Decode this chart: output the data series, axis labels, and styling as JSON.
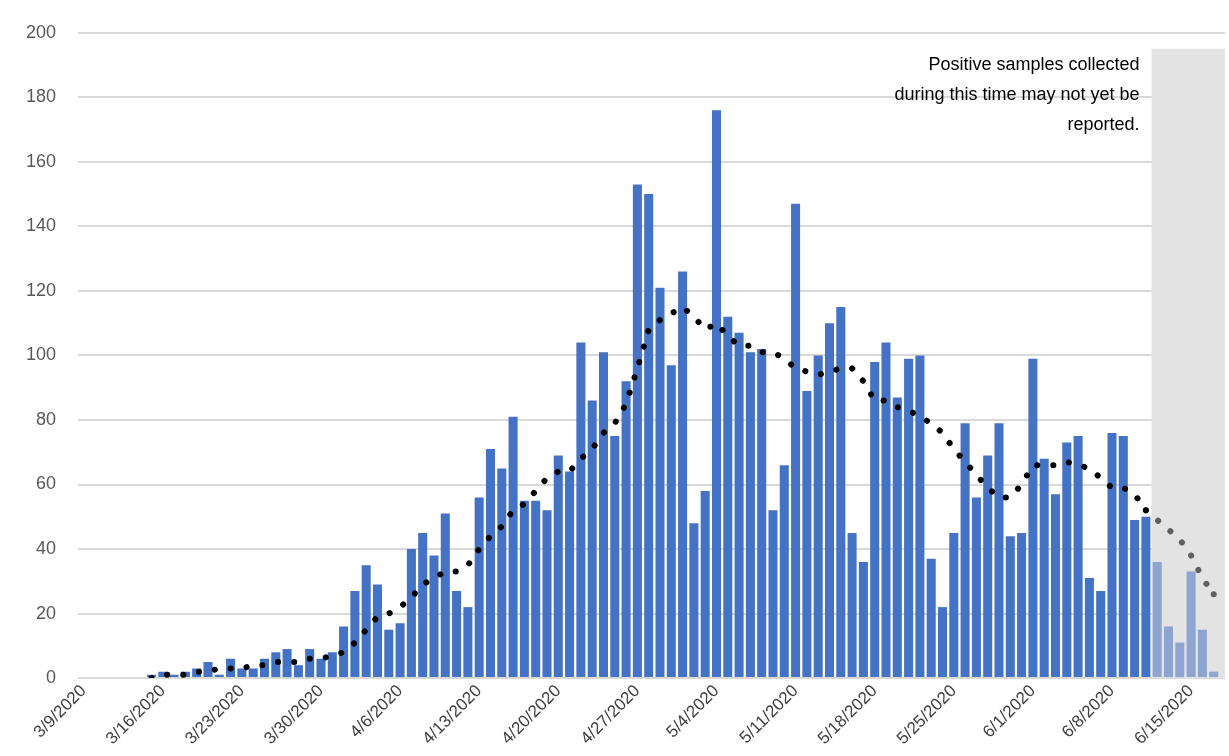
{
  "chart_data": {
    "type": "bar",
    "x": [
      "2020-03-15",
      "2020-03-16",
      "2020-03-17",
      "2020-03-18",
      "2020-03-19",
      "2020-03-20",
      "2020-03-21",
      "2020-03-22",
      "2020-03-23",
      "2020-03-24",
      "2020-03-25",
      "2020-03-26",
      "2020-03-27",
      "2020-03-28",
      "2020-03-29",
      "2020-03-30",
      "2020-03-31",
      "2020-04-01",
      "2020-04-02",
      "2020-04-03",
      "2020-04-04",
      "2020-04-05",
      "2020-04-06",
      "2020-04-07",
      "2020-04-08",
      "2020-04-09",
      "2020-04-10",
      "2020-04-11",
      "2020-04-12",
      "2020-04-13",
      "2020-04-14",
      "2020-04-15",
      "2020-04-16",
      "2020-04-17",
      "2020-04-18",
      "2020-04-19",
      "2020-04-20",
      "2020-04-21",
      "2020-04-22",
      "2020-04-23",
      "2020-04-24",
      "2020-04-25",
      "2020-04-26",
      "2020-04-27",
      "2020-04-28",
      "2020-04-29",
      "2020-04-30",
      "2020-05-01",
      "2020-05-02",
      "2020-05-03",
      "2020-05-04",
      "2020-05-05",
      "2020-05-06",
      "2020-05-07",
      "2020-05-08",
      "2020-05-09",
      "2020-05-10",
      "2020-05-11",
      "2020-05-12",
      "2020-05-13",
      "2020-05-14",
      "2020-05-15",
      "2020-05-16",
      "2020-05-17",
      "2020-05-18",
      "2020-05-19",
      "2020-05-20",
      "2020-05-21",
      "2020-05-22",
      "2020-05-23",
      "2020-05-24",
      "2020-05-25",
      "2020-05-26",
      "2020-05-27",
      "2020-05-28",
      "2020-05-29",
      "2020-05-30",
      "2020-05-31",
      "2020-06-01",
      "2020-06-02",
      "2020-06-03",
      "2020-06-04",
      "2020-06-05",
      "2020-06-06",
      "2020-06-07",
      "2020-06-08",
      "2020-06-09",
      "2020-06-10",
      "2020-06-11",
      "2020-06-12",
      "2020-06-13",
      "2020-06-14",
      "2020-06-15",
      "2020-06-16",
      "2020-06-17"
    ],
    "xlim": [
      "2020-03-08T12:00",
      "2020-06-18"
    ],
    "xticks": [
      {
        "value": "2020-03-09",
        "label": "3/9/2020"
      },
      {
        "value": "2020-03-16",
        "label": "3/16/2020"
      },
      {
        "value": "2020-03-23",
        "label": "3/23/2020"
      },
      {
        "value": "2020-03-30",
        "label": "3/30/2020"
      },
      {
        "value": "2020-04-06",
        "label": "4/6/2020"
      },
      {
        "value": "2020-04-13",
        "label": "4/13/2020"
      },
      {
        "value": "2020-04-20",
        "label": "4/20/2020"
      },
      {
        "value": "2020-04-27",
        "label": "4/27/2020"
      },
      {
        "value": "2020-05-04",
        "label": "5/4/2020"
      },
      {
        "value": "2020-05-11",
        "label": "5/11/2020"
      },
      {
        "value": "2020-05-18",
        "label": "5/18/2020"
      },
      {
        "value": "2020-05-25",
        "label": "5/25/2020"
      },
      {
        "value": "2020-06-01",
        "label": "6/1/2020"
      },
      {
        "value": "2020-06-08",
        "label": "6/8/2020"
      },
      {
        "value": "2020-06-15",
        "label": "6/15/2020"
      }
    ],
    "ylim": [
      0,
      200
    ],
    "yticks": [
      0,
      20,
      40,
      60,
      80,
      100,
      120,
      140,
      160,
      180,
      200
    ],
    "grid": "y",
    "legend": false,
    "line_style": "dotted",
    "marker": "none",
    "bands": [
      {
        "axis": "x",
        "from": "2020-06-11T12:00",
        "to": "2020-06-18",
        "color": "#e3e3e3"
      }
    ],
    "annotations": [
      "Positive samples collected during this time may not yet be reported."
    ],
    "series": [
      {
        "values": [
          1,
          2,
          1,
          2,
          3,
          5,
          1,
          6,
          3,
          3,
          6,
          8,
          9,
          4,
          9,
          6,
          8,
          16,
          27,
          35,
          29,
          15,
          17,
          40,
          45,
          38,
          51,
          27,
          22,
          56,
          71,
          65,
          81,
          55,
          55,
          52,
          69,
          64,
          104,
          86,
          101,
          75,
          92,
          153,
          150,
          121,
          97,
          126,
          48,
          58,
          176,
          112,
          107,
          101,
          102,
          52,
          66,
          147,
          89,
          100,
          110,
          115,
          45,
          36,
          98,
          104,
          87,
          99,
          100,
          37,
          22,
          45,
          79,
          56,
          69,
          79,
          44,
          45,
          99,
          68,
          57,
          73,
          75,
          31,
          27,
          76,
          75,
          49,
          50,
          36,
          16,
          11,
          33,
          15,
          2
        ],
        "colors": [
          "#4472c4",
          "#4472c4",
          "#4472c4",
          "#4472c4",
          "#4472c4",
          "#4472c4",
          "#4472c4",
          "#4472c4",
          "#4472c4",
          "#4472c4",
          "#4472c4",
          "#4472c4",
          "#4472c4",
          "#4472c4",
          "#4472c4",
          "#4472c4",
          "#4472c4",
          "#4472c4",
          "#4472c4",
          "#4472c4",
          "#4472c4",
          "#4472c4",
          "#4472c4",
          "#4472c4",
          "#4472c4",
          "#4472c4",
          "#4472c4",
          "#4472c4",
          "#4472c4",
          "#4472c4",
          "#4472c4",
          "#4472c4",
          "#4472c4",
          "#4472c4",
          "#4472c4",
          "#4472c4",
          "#4472c4",
          "#4472c4",
          "#4472c4",
          "#4472c4",
          "#4472c4",
          "#4472c4",
          "#4472c4",
          "#4472c4",
          "#4472c4",
          "#4472c4",
          "#4472c4",
          "#4472c4",
          "#4472c4",
          "#4472c4",
          "#4472c4",
          "#4472c4",
          "#4472c4",
          "#4472c4",
          "#4472c4",
          "#4472c4",
          "#4472c4",
          "#4472c4",
          "#4472c4",
          "#4472c4",
          "#4472c4",
          "#4472c4",
          "#4472c4",
          "#4472c4",
          "#4472c4",
          "#4472c4",
          "#4472c4",
          "#4472c4",
          "#4472c4",
          "#4472c4",
          "#4472c4",
          "#4472c4",
          "#4472c4",
          "#4472c4",
          "#4472c4",
          "#4472c4",
          "#4472c4",
          "#4472c4",
          "#4472c4",
          "#4472c4",
          "#4472c4",
          "#4472c4",
          "#4472c4",
          "#4472c4",
          "#4472c4",
          "#4472c4",
          "#4472c4",
          "#4472c4",
          "#4472c4",
          "#8ea5d2",
          "#8ea5d2",
          "#8ea5d2",
          "#8ea5d2",
          "#8ea5d2",
          "#8ea5d2"
        ]
      },
      {
        "type": "line",
        "color": "#000000",
        "x": [
          "2020-03-15",
          "2020-03-16",
          "2020-03-17",
          "2020-03-18",
          "2020-03-19",
          "2020-03-20",
          "2020-03-21",
          "2020-03-22",
          "2020-03-23",
          "2020-03-24",
          "2020-03-25",
          "2020-03-26",
          "2020-03-27",
          "2020-03-28",
          "2020-03-29",
          "2020-03-30",
          "2020-03-31",
          "2020-04-01",
          "2020-04-02",
          "2020-04-03",
          "2020-04-04",
          "2020-04-05",
          "2020-04-06",
          "2020-04-07",
          "2020-04-08",
          "2020-04-09",
          "2020-04-10",
          "2020-04-11",
          "2020-04-12",
          "2020-04-13",
          "2020-04-14",
          "2020-04-15",
          "2020-04-16",
          "2020-04-17",
          "2020-04-18",
          "2020-04-19",
          "2020-04-20",
          "2020-04-21",
          "2020-04-22",
          "2020-04-23",
          "2020-04-24",
          "2020-04-25",
          "2020-04-26",
          "2020-04-27",
          "2020-04-28",
          "2020-04-29",
          "2020-04-30",
          "2020-05-01",
          "2020-05-02",
          "2020-05-03",
          "2020-05-04",
          "2020-05-05",
          "2020-05-06",
          "2020-05-07",
          "2020-05-08",
          "2020-05-09",
          "2020-05-10",
          "2020-05-11",
          "2020-05-12",
          "2020-05-13",
          "2020-05-14",
          "2020-05-15",
          "2020-05-16",
          "2020-05-17",
          "2020-05-18",
          "2020-05-19",
          "2020-05-20",
          "2020-05-21",
          "2020-05-22",
          "2020-05-23",
          "2020-05-24",
          "2020-05-25",
          "2020-05-26",
          "2020-05-27",
          "2020-05-28",
          "2020-05-29",
          "2020-05-30",
          "2020-05-31",
          "2020-06-01",
          "2020-06-02",
          "2020-06-03",
          "2020-06-04",
          "2020-06-05",
          "2020-06-06",
          "2020-06-07",
          "2020-06-08",
          "2020-06-09",
          "2020-06-10",
          "2020-06-11"
        ],
        "values": [
          0,
          1,
          1,
          1,
          2,
          2,
          3,
          3,
          3,
          4,
          4,
          5,
          5,
          5,
          6,
          6,
          7,
          8,
          11,
          15,
          19,
          20,
          22,
          25,
          29,
          31,
          33,
          33,
          35,
          40,
          44,
          47,
          52,
          54,
          58,
          62,
          64,
          64,
          68,
          71,
          76,
          79,
          85,
          96,
          108,
          111,
          113,
          115,
          112,
          108,
          110,
          106,
          103,
          103,
          101,
          101,
          99,
          96,
          95,
          94,
          95,
          96,
          96,
          92,
          86,
          86,
          84,
          83,
          81,
          79,
          76,
          71,
          67,
          63,
          59,
          56,
          56,
          60,
          66,
          66,
          66,
          67,
          66,
          65,
          62,
          59,
          59,
          57,
          52
        ]
      },
      {
        "type": "line",
        "color": "#606060",
        "x": [
          "2020-06-11",
          "2020-06-12",
          "2020-06-13",
          "2020-06-14",
          "2020-06-15",
          "2020-06-16",
          "2020-06-17"
        ],
        "values": [
          52,
          49,
          46,
          43,
          38,
          31,
          26
        ]
      }
    ]
  }
}
